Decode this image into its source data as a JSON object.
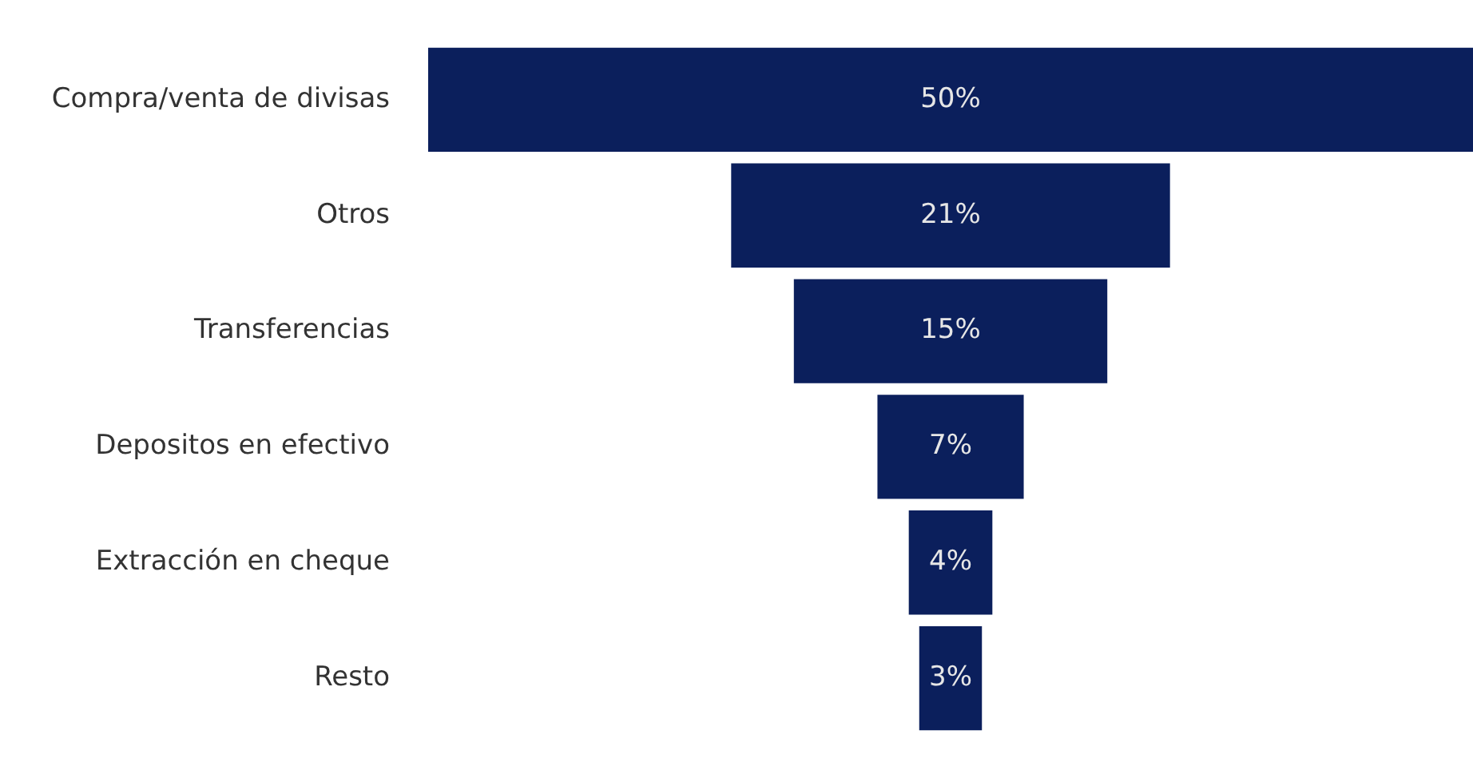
{
  "chart_data": {
    "type": "other",
    "categories": [
      "Compra/venta de divisas",
      "Otros",
      "Transferencias",
      "Depositos en efectivo",
      "Extracción en cheque",
      "Resto"
    ],
    "values": [
      50,
      21,
      15,
      7,
      4,
      3
    ],
    "value_labels": [
      "50%",
      "21%",
      "15%",
      "7%",
      "4%",
      "3%"
    ],
    "color": "#0b1f5c"
  }
}
